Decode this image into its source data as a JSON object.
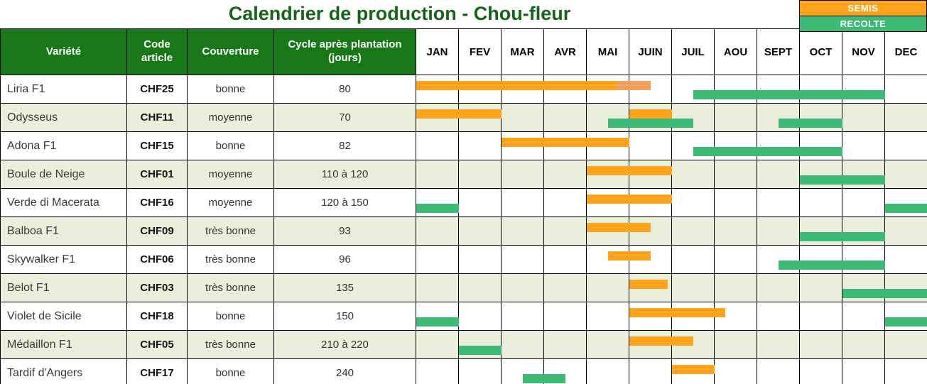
{
  "title": "Calendrier de production - Chou-fleur",
  "legend": {
    "semis": "SEMIS",
    "recolte": "RECOLTE"
  },
  "colors": {
    "semis": "#FFA41C",
    "semis_light": "#F2A05C",
    "recolte": "#3DBB76",
    "header_bg": "#187818",
    "title": "#166419",
    "row_alt": "#EAEFDC",
    "grid": "#000000"
  },
  "chart_data": {
    "type": "table",
    "title": "Calendrier de production - Chou-fleur",
    "columns": [
      "Variété",
      "Code article",
      "Couverture",
      "Cycle après plantation (jours)"
    ],
    "months": [
      "JAN",
      "FEV",
      "MAR",
      "AVR",
      "MAI",
      "JUIN",
      "JUIL",
      "AOU",
      "SEPT",
      "OCT",
      "NOV",
      "DEC"
    ],
    "legend_entries": [
      "SEMIS",
      "RECOLTE"
    ],
    "units": "bar start/end are in months: 0 = start of JAN, 12 = end of DEC",
    "rows": [
      {
        "variete": "Liria F1",
        "code": "CHF25",
        "couverture": "bonne",
        "cycle": "80",
        "bars": [
          {
            "type": "semis",
            "start": 0,
            "end": 4.7
          },
          {
            "type": "semis_light",
            "start": 4.7,
            "end": 5.5
          },
          {
            "type": "recolte",
            "start": 6.5,
            "end": 11
          }
        ]
      },
      {
        "variete": "Odysseus",
        "code": "CHF11",
        "couverture": "moyenne",
        "cycle": "70",
        "bars": [
          {
            "type": "semis",
            "start": 0,
            "end": 2
          },
          {
            "type": "semis",
            "start": 5,
            "end": 6
          },
          {
            "type": "recolte",
            "start": 4.5,
            "end": 6.5
          },
          {
            "type": "recolte",
            "start": 8.5,
            "end": 10
          }
        ]
      },
      {
        "variete": "Adona F1",
        "code": "CHF15",
        "couverture": "bonne",
        "cycle": "82",
        "bars": [
          {
            "type": "semis",
            "start": 2,
            "end": 5
          },
          {
            "type": "recolte",
            "start": 6.5,
            "end": 10
          }
        ]
      },
      {
        "variete": "Boule de Neige",
        "code": "CHF01",
        "couverture": "moyenne",
        "cycle": "110 à 120",
        "bars": [
          {
            "type": "semis",
            "start": 4,
            "end": 6
          },
          {
            "type": "recolte",
            "start": 9,
            "end": 11
          }
        ]
      },
      {
        "variete": "Verde di Macerata",
        "code": "CHF16",
        "couverture": "moyenne",
        "cycle": "120 à 150",
        "bars": [
          {
            "type": "recolte",
            "start": 0,
            "end": 1
          },
          {
            "type": "semis",
            "start": 4,
            "end": 6
          },
          {
            "type": "recolte",
            "start": 11,
            "end": 12
          }
        ]
      },
      {
        "variete": "Balboa F1",
        "code": "CHF09",
        "couverture": "très bonne",
        "cycle": "93",
        "bars": [
          {
            "type": "semis",
            "start": 4,
            "end": 5.5
          },
          {
            "type": "recolte",
            "start": 9,
            "end": 11
          }
        ]
      },
      {
        "variete": "Skywalker F1",
        "code": "CHF06",
        "couverture": "très bonne",
        "cycle": "96",
        "bars": [
          {
            "type": "semis",
            "start": 4.5,
            "end": 5.5
          },
          {
            "type": "recolte",
            "start": 8.5,
            "end": 11
          }
        ]
      },
      {
        "variete": "Belot F1",
        "code": "CHF03",
        "couverture": "très bonne",
        "cycle": "135",
        "bars": [
          {
            "type": "semis",
            "start": 5,
            "end": 5.9
          },
          {
            "type": "recolte",
            "start": 10,
            "end": 12
          }
        ]
      },
      {
        "variete": "Violet de Sicile",
        "code": "CHF18",
        "couverture": "bonne",
        "cycle": "150",
        "bars": [
          {
            "type": "recolte",
            "start": 0,
            "end": 1
          },
          {
            "type": "semis",
            "start": 5,
            "end": 7.25
          },
          {
            "type": "recolte",
            "start": 11,
            "end": 12
          }
        ]
      },
      {
        "variete": "Médaillon F1",
        "code": "CHF05",
        "couverture": "très bonne",
        "cycle": "210 à 220",
        "bars": [
          {
            "type": "recolte",
            "start": 1,
            "end": 2
          },
          {
            "type": "semis",
            "start": 5,
            "end": 6.5
          }
        ]
      },
      {
        "variete": "Tardif d'Angers",
        "code": "CHF17",
        "couverture": "bonne",
        "cycle": "240",
        "bars": [
          {
            "type": "recolte",
            "start": 2.5,
            "end": 3.5
          },
          {
            "type": "semis",
            "start": 6,
            "end": 7
          }
        ]
      }
    ]
  }
}
